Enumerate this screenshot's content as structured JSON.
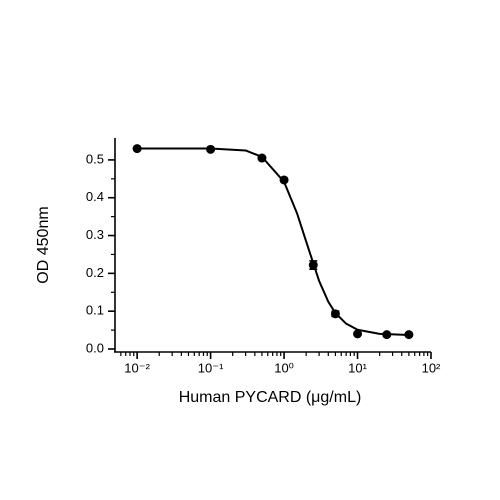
{
  "chart_data": {
    "type": "scatter",
    "xlabel": "Human PYCARD (μg/mL)",
    "ylabel": "OD 450nm",
    "xscale": "log",
    "xlim": [
      0.005,
      100
    ],
    "ylim": [
      0,
      0.55
    ],
    "xticks": [
      {
        "value": 0.01,
        "label": "10⁻²"
      },
      {
        "value": 0.1,
        "label": "10⁻¹"
      },
      {
        "value": 1,
        "label": "10⁰"
      },
      {
        "value": 10,
        "label": "10¹"
      },
      {
        "value": 100,
        "label": "10²"
      }
    ],
    "xminorticks": [
      0.006,
      0.007,
      0.008,
      0.009,
      0.02,
      0.03,
      0.04,
      0.05,
      0.06,
      0.07,
      0.08,
      0.09,
      0.2,
      0.3,
      0.4,
      0.5,
      0.6,
      0.7,
      0.8,
      0.9,
      2,
      3,
      4,
      5,
      6,
      7,
      8,
      9,
      20,
      30,
      40,
      50,
      60,
      70,
      80,
      90
    ],
    "yticks": [
      {
        "value": 0,
        "label": "0.0"
      },
      0.1,
      0.2,
      0.3,
      0.4,
      0.5
    ],
    "yminorticks": [
      0.05,
      0.15,
      0.25,
      0.35,
      0.45
    ],
    "color": "#000000",
    "points": {
      "x": [
        0.01,
        0.1,
        0.5,
        1,
        2.5,
        5,
        10,
        25,
        50
      ],
      "values": [
        0.53,
        0.528,
        0.505,
        0.447,
        0.222,
        0.093,
        0.04,
        0.038,
        0.038
      ],
      "errors": [
        0.002,
        0.002,
        0.004,
        0.004,
        0.011,
        0.007,
        0.002,
        0.002,
        0.002
      ]
    },
    "curve": {
      "x": [
        0.01,
        0.1,
        0.3,
        0.5,
        1,
        1.5,
        2,
        3,
        4,
        5,
        7,
        10,
        20,
        50
      ],
      "values": [
        0.53,
        0.53,
        0.525,
        0.508,
        0.442,
        0.359,
        0.284,
        0.18,
        0.125,
        0.095,
        0.067,
        0.051,
        0.04,
        0.037
      ]
    }
  }
}
